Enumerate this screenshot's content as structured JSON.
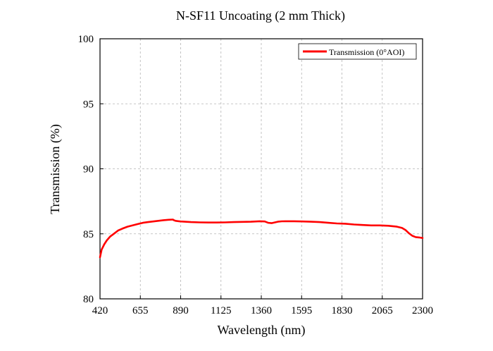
{
  "chart_data": {
    "type": "line",
    "title": "N-SF11 Uncoating (2 mm Thick)",
    "xlabel": "Wavelength (nm)",
    "ylabel": "Transmission (%)",
    "xlim": [
      420,
      2300
    ],
    "ylim": [
      80,
      100
    ],
    "x_ticks": [
      420,
      655,
      890,
      1125,
      1360,
      1595,
      1830,
      2065,
      2300
    ],
    "y_ticks": [
      80,
      85,
      90,
      95,
      100
    ],
    "grid": true,
    "legend_position": "top-right",
    "series": [
      {
        "name": "Transmission (0°AOI)",
        "color": "#ff0000",
        "x": [
          420,
          430,
          445,
          460,
          480,
          500,
          525,
          550,
          580,
          610,
          640,
          670,
          700,
          730,
          760,
          790,
          820,
          845,
          850,
          860,
          890,
          950,
          1000,
          1050,
          1100,
          1150,
          1200,
          1250,
          1300,
          1350,
          1380,
          1400,
          1420,
          1440,
          1460,
          1480,
          1500,
          1550,
          1600,
          1650,
          1700,
          1750,
          1800,
          1850,
          1900,
          1950,
          2000,
          2050,
          2100,
          2150,
          2180,
          2200,
          2220,
          2240,
          2260,
          2280,
          2300
        ],
        "y": [
          83.2,
          83.8,
          84.2,
          84.5,
          84.8,
          85.0,
          85.25,
          85.4,
          85.55,
          85.65,
          85.75,
          85.85,
          85.9,
          85.95,
          86.0,
          86.05,
          86.08,
          86.1,
          86.05,
          86.0,
          85.95,
          85.9,
          85.88,
          85.87,
          85.87,
          85.88,
          85.9,
          85.92,
          85.93,
          85.97,
          85.95,
          85.85,
          85.82,
          85.88,
          85.94,
          85.96,
          85.97,
          85.97,
          85.95,
          85.93,
          85.9,
          85.85,
          85.8,
          85.78,
          85.72,
          85.68,
          85.65,
          85.65,
          85.62,
          85.55,
          85.45,
          85.3,
          85.05,
          84.85,
          84.75,
          84.72,
          84.68
        ]
      }
    ]
  }
}
